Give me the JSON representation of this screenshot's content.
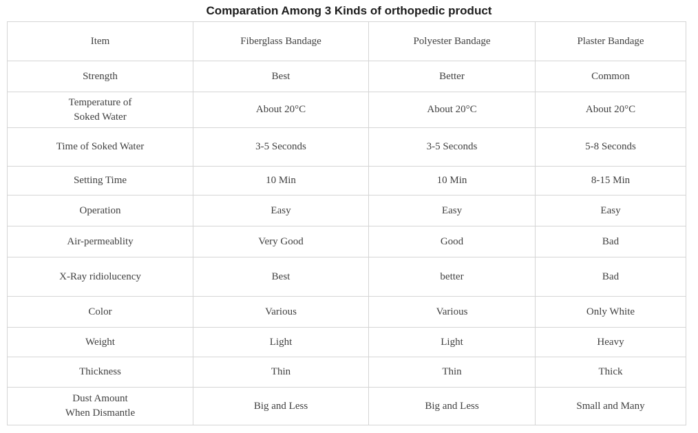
{
  "title": "Comparation Among 3 Kinds of orthopedic product",
  "table": {
    "headers": [
      "Item",
      "Fiberglass Bandage",
      "Polyester Bandage",
      "Plaster Bandage"
    ],
    "rows": [
      [
        "Strength",
        "Best",
        "Better",
        "Common"
      ],
      [
        "Temperature of\nSoked Water",
        "About 20°C",
        "About 20°C",
        "About 20°C"
      ],
      [
        "Time of Soked Water",
        "3-5 Seconds",
        "3-5 Seconds",
        "5-8 Seconds"
      ],
      [
        "Setting Time",
        "10 Min",
        "10 Min",
        "8-15 Min"
      ],
      [
        "Operation",
        "Easy",
        "Easy",
        "Easy"
      ],
      [
        "Air-permeablity",
        "Very Good",
        "Good",
        "Bad"
      ],
      [
        "X-Ray ridiolucency",
        "Best",
        "better",
        "Bad"
      ],
      [
        "Color",
        "Various",
        "Various",
        "Only White"
      ],
      [
        "Weight",
        "Light",
        "Light",
        "Heavy"
      ],
      [
        "Thickness",
        "Thin",
        "Thin",
        "Thick"
      ],
      [
        "Dust Amount\nWhen Dismantle",
        "Big and Less",
        "Big and Less",
        "Small and Many"
      ]
    ]
  },
  "colors": {
    "grid_border": "#d5d5d5",
    "cell_text": "#3f3f3f",
    "title_text": "#1c1c1c",
    "background": "#ffffff"
  }
}
